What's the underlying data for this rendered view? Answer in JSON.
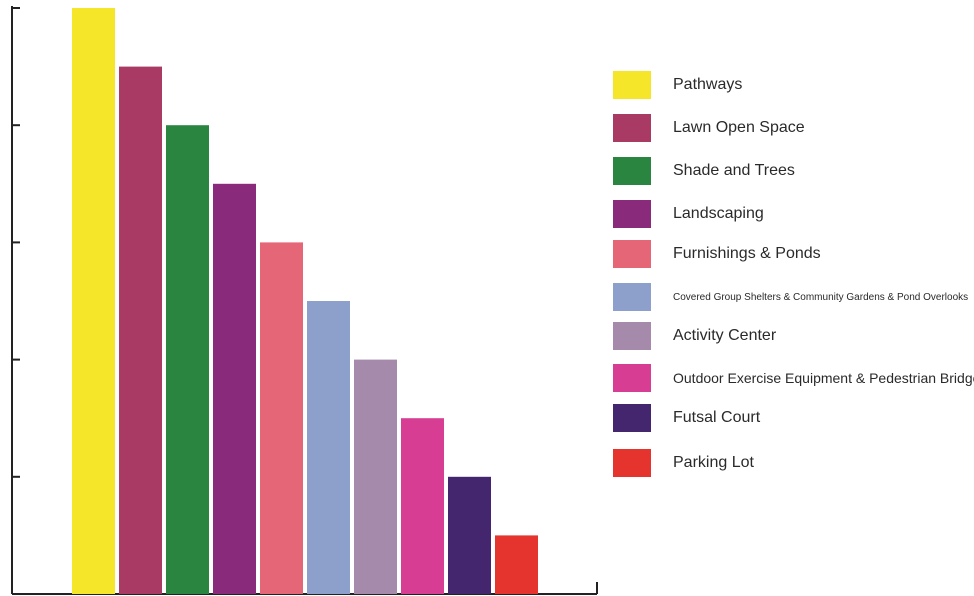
{
  "chart_data": {
    "type": "bar",
    "title": "",
    "xlabel": "",
    "ylabel": "",
    "ylim": [
      0,
      10
    ],
    "grid": false,
    "legend_placement": "right",
    "categories": [
      "Pathways",
      "Lawn Open Space",
      "Shade and Trees",
      "Landscaping",
      "Furnishings & Ponds",
      "Covered Group Shelters & Community Gardens & Pond Overlooks",
      "Activity Center",
      "Outdoor Exercise Equipment & Pedestrian Bridge",
      "Futsal Court",
      "Parking Lot"
    ],
    "values": [
      10,
      9,
      8,
      7,
      6,
      5,
      4,
      3,
      2,
      1
    ],
    "colors": [
      "#f5e629",
      "#a93a64",
      "#2a8541",
      "#8a2a7a",
      "#e56676",
      "#8da0cb",
      "#a68aab",
      "#d63d93",
      "#44266e",
      "#e4342d"
    ]
  }
}
